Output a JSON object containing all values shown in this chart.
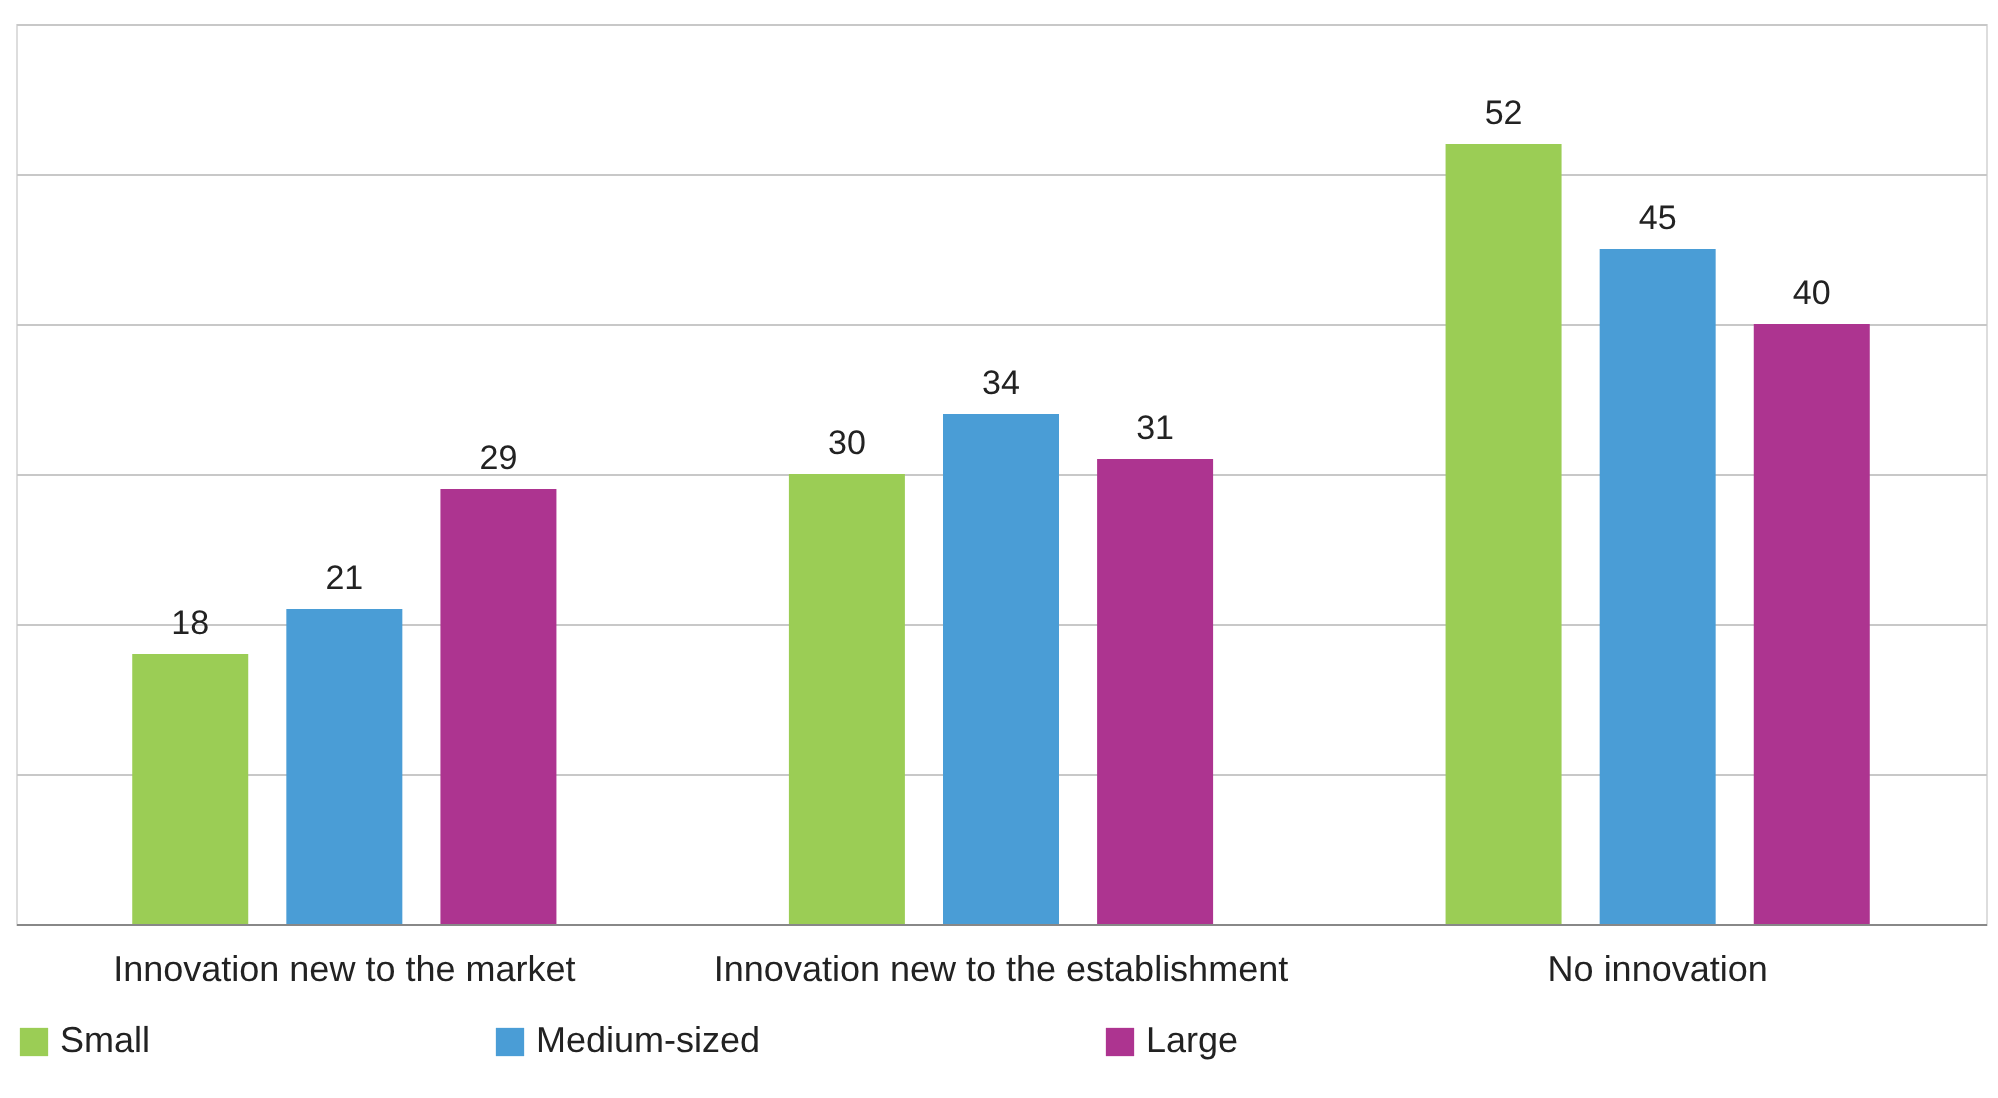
{
  "chart_data": {
    "type": "bar",
    "categories": [
      "Innovation new to the market",
      "Innovation new to the establishment",
      "No innovation"
    ],
    "series": [
      {
        "name": "Small",
        "color": "#9bcd55",
        "values": [
          18,
          30,
          52
        ]
      },
      {
        "name": "Medium-sized",
        "color": "#4a9dd6",
        "values": [
          21,
          34,
          45
        ]
      },
      {
        "name": "Large",
        "color": "#ad3490",
        "values": [
          29,
          31,
          40
        ]
      }
    ],
    "ylim": [
      0,
      60
    ],
    "yticks": [
      {
        "value": 0,
        "label": null
      },
      {
        "value": 10,
        "label": null
      },
      {
        "value": 20,
        "label": null
      },
      {
        "value": 30,
        "label": null
      },
      {
        "value": 40,
        "label": null
      },
      {
        "value": 50,
        "label": null
      },
      {
        "value": 60,
        "label": null
      }
    ],
    "tick_labels": "x",
    "grid": "y",
    "legend": "bottom",
    "data_labels": true
  }
}
